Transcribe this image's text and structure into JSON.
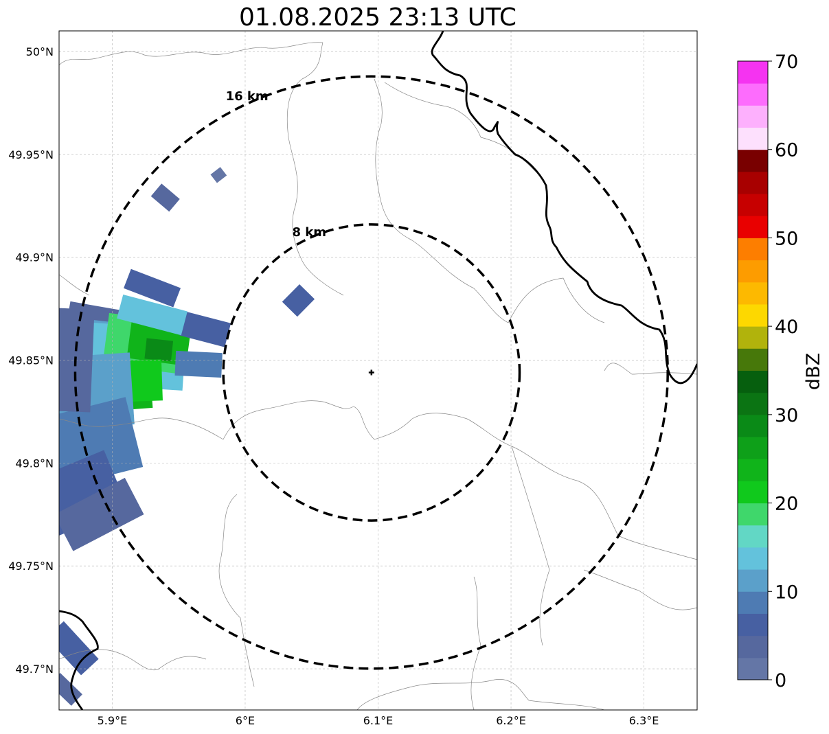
{
  "title": "01.08.2025 23:13 UTC",
  "map": {
    "lon_range": [
      5.86,
      6.34
    ],
    "lat_range": [
      49.68,
      50.01
    ],
    "gridlines": true,
    "lon_ticks": [
      {
        "value": 5.9,
        "label": "5.9°E"
      },
      {
        "value": 6.0,
        "label": "6°E"
      },
      {
        "value": 6.1,
        "label": "6.1°E"
      },
      {
        "value": 6.2,
        "label": "6.2°E"
      },
      {
        "value": 6.3,
        "label": "6.3°E"
      }
    ],
    "lat_ticks": [
      {
        "value": 50.0,
        "label": "50°N"
      },
      {
        "value": 49.95,
        "label": "49.95°N"
      },
      {
        "value": 49.9,
        "label": "49.9°N"
      },
      {
        "value": 49.85,
        "label": "49.85°N"
      },
      {
        "value": 49.8,
        "label": "49.8°N"
      },
      {
        "value": 49.75,
        "label": "49.75°N"
      },
      {
        "value": 49.7,
        "label": "49.7°N"
      }
    ]
  },
  "radar_site": {
    "lon": 6.095,
    "lat": 49.844
  },
  "range_rings": [
    {
      "radius_km": 8,
      "label": "8 km"
    },
    {
      "radius_km": 16,
      "label": "16 km"
    }
  ],
  "colorbar": {
    "label": "dBZ",
    "min": 0,
    "max": 70,
    "ticks": [
      {
        "value": 0,
        "label": "0"
      },
      {
        "value": 10,
        "label": "10"
      },
      {
        "value": 20,
        "label": "20"
      },
      {
        "value": 30,
        "label": "30"
      },
      {
        "value": 40,
        "label": "40"
      },
      {
        "value": 50,
        "label": "50"
      },
      {
        "value": 60,
        "label": "60"
      },
      {
        "value": 70,
        "label": "70"
      }
    ],
    "colors": [
      "#6476a6",
      "#56689e",
      "#4760a2",
      "#4e7bb3",
      "#5ba0ca",
      "#63c2dc",
      "#62d7c5",
      "#3fd76b",
      "#10c91c",
      "#10b41a",
      "#0ea019",
      "#0a8a17",
      "#0b7413",
      "#065f0e",
      "#47780a",
      "#b1b30c",
      "#fdd800",
      "#fdb900",
      "#fd9c00",
      "#fd7e00",
      "#e90000",
      "#c70000",
      "#a80000",
      "#790000",
      "#fde0fd",
      "#fdb0fd",
      "#fd6cfd",
      "#f533f1"
    ]
  },
  "echoes": [
    {
      "lon": 5.908,
      "lat": 49.865,
      "w": 0.085,
      "h": 0.018,
      "dbz": 4
    },
    {
      "lon": 5.905,
      "lat": 49.858,
      "w": 0.09,
      "h": 0.02,
      "dbz": 10
    },
    {
      "lon": 5.912,
      "lat": 49.852,
      "w": 0.085,
      "h": 0.03,
      "dbz": 14
    },
    {
      "lon": 5.925,
      "lat": 49.858,
      "w": 0.06,
      "h": 0.025,
      "dbz": 19
    },
    {
      "lon": 5.935,
      "lat": 49.858,
      "w": 0.045,
      "h": 0.018,
      "dbz": 23
    },
    {
      "lon": 5.935,
      "lat": 49.855,
      "w": 0.02,
      "h": 0.01,
      "dbz": 28
    },
    {
      "lon": 5.912,
      "lat": 49.835,
      "w": 0.035,
      "h": 0.018,
      "dbz": 23
    },
    {
      "lon": 5.92,
      "lat": 49.84,
      "w": 0.035,
      "h": 0.02,
      "dbz": 21
    },
    {
      "lon": 5.885,
      "lat": 49.835,
      "w": 0.06,
      "h": 0.035,
      "dbz": 12
    },
    {
      "lon": 5.885,
      "lat": 49.81,
      "w": 0.065,
      "h": 0.035,
      "dbz": 9
    },
    {
      "lon": 5.875,
      "lat": 49.785,
      "w": 0.06,
      "h": 0.03,
      "dbz": 7
    },
    {
      "lon": 5.89,
      "lat": 49.775,
      "w": 0.06,
      "h": 0.02,
      "dbz": 3
    },
    {
      "lon": 5.87,
      "lat": 49.85,
      "w": 0.03,
      "h": 0.05,
      "dbz": 4
    },
    {
      "lon": 5.97,
      "lat": 49.865,
      "w": 0.035,
      "h": 0.012,
      "dbz": 5
    },
    {
      "lon": 5.965,
      "lat": 49.848,
      "w": 0.035,
      "h": 0.012,
      "dbz": 9
    },
    {
      "lon": 5.93,
      "lat": 49.885,
      "w": 0.04,
      "h": 0.01,
      "dbz": 5
    },
    {
      "lon": 5.93,
      "lat": 49.872,
      "w": 0.05,
      "h": 0.012,
      "dbz": 13
    },
    {
      "lon": 5.87,
      "lat": 49.71,
      "w": 0.018,
      "h": 0.025,
      "dbz": 6
    },
    {
      "lon": 5.865,
      "lat": 49.69,
      "w": 0.012,
      "h": 0.015,
      "dbz": 3
    },
    {
      "lon": 5.98,
      "lat": 49.94,
      "w": 0.008,
      "h": 0.006,
      "dbz": 2
    },
    {
      "lon": 5.94,
      "lat": 49.929,
      "w": 0.018,
      "h": 0.008,
      "dbz": 3
    },
    {
      "lon": 6.04,
      "lat": 49.879,
      "w": 0.016,
      "h": 0.012,
      "dbz": 5
    }
  ]
}
